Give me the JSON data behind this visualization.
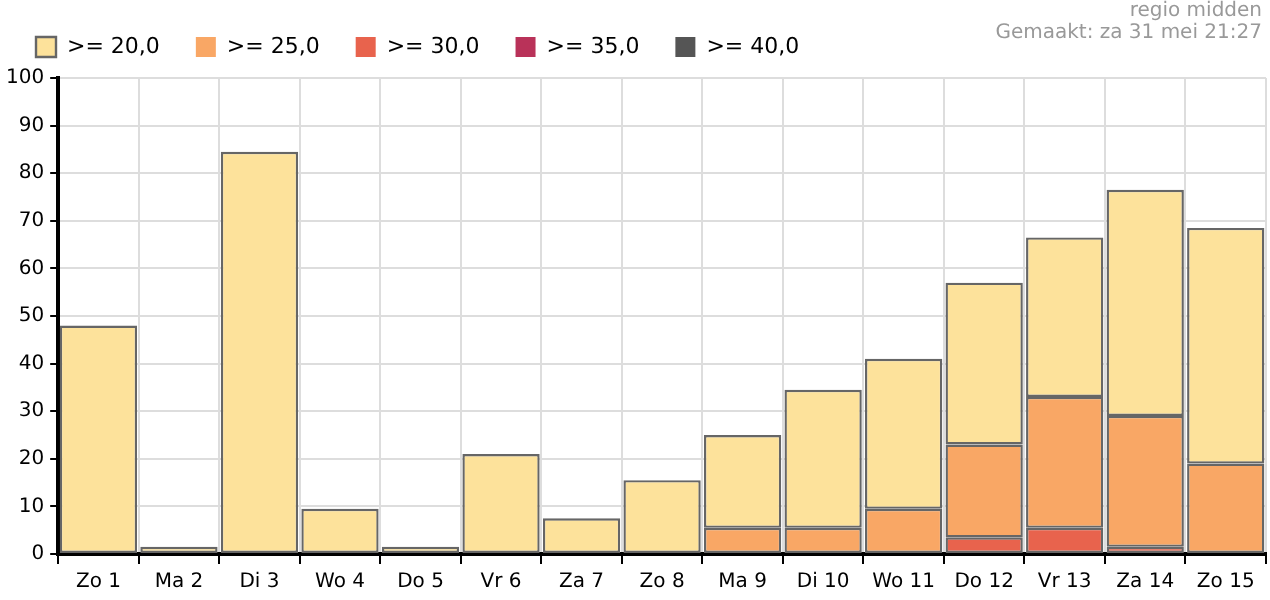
{
  "chart_data": {
    "type": "bar",
    "stacked": true,
    "legend": "top left",
    "grid": true,
    "annotations": [
      "regio midden",
      "Gemaakt: za 31 mei 21:27"
    ],
    "categories": [
      "Zo 1",
      "Ma 2",
      "Di 3",
      "Wo 4",
      "Do 5",
      "Vr 6",
      "Za 7",
      "Zo 8",
      "Ma 9",
      "Di 10",
      "Wo 11",
      "Do 12",
      "Vr 13",
      "Za 14",
      "Zo 15"
    ],
    "ylim": [
      0,
      100
    ],
    "yticks": [
      0,
      10,
      20,
      30,
      40,
      50,
      60,
      70,
      80,
      90,
      100
    ],
    "series": [
      {
        "name": ">= 40,0",
        "color": "#555555",
        "values": [
          0,
          0,
          0,
          0,
          0,
          0,
          0,
          0,
          0,
          0,
          0,
          0,
          0,
          0,
          0
        ]
      },
      {
        "name": ">= 35,0",
        "color": "#b93259",
        "values": [
          0,
          0,
          0,
          0,
          0,
          0,
          0,
          0,
          0,
          0,
          0,
          0,
          0,
          0,
          0
        ]
      },
      {
        "name": ">= 30,0",
        "color": "#e8634d",
        "values": [
          0,
          0,
          0,
          0,
          0,
          0,
          0,
          0,
          0,
          0,
          0,
          3.5,
          5.5,
          1.5,
          0
        ]
      },
      {
        "name": ">= 25,0",
        "color": "#f9a765",
        "values": [
          0,
          0,
          0,
          0,
          0,
          0,
          0,
          0,
          5.5,
          5.5,
          9.5,
          19.5,
          27.5,
          27.5,
          19
        ]
      },
      {
        "name": ">= 20,0",
        "color": "#fde29b",
        "values": [
          48,
          1.5,
          84.5,
          9.5,
          1.5,
          21,
          7.5,
          15.5,
          19.5,
          29,
          31.5,
          34,
          33.5,
          47.5,
          49.5
        ]
      }
    ]
  }
}
